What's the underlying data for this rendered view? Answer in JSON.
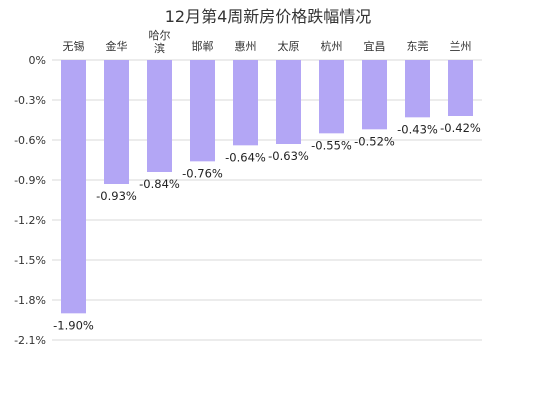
{
  "chart_data": {
    "type": "bar",
    "title": "12月第4周新房价格跌幅情况",
    "categories": [
      "无锡",
      "金华",
      "哈尔滨",
      "邯郸",
      "惠州",
      "太原",
      "杭州",
      "宜昌",
      "东莞",
      "兰州"
    ],
    "values": [
      -1.9,
      -0.93,
      -0.84,
      -0.76,
      -0.64,
      -0.63,
      -0.55,
      -0.52,
      -0.43,
      -0.42
    ],
    "value_labels": [
      "-1.90%",
      "-0.93%",
      "-0.84%",
      "-0.76%",
      "-0.64%",
      "-0.63%",
      "-0.55%",
      "-0.52%",
      "-0.43%",
      "-0.42%"
    ],
    "yticks": [
      0,
      -0.3,
      -0.6,
      -0.9,
      -1.2,
      -1.5,
      -1.8,
      -2.1
    ],
    "ytick_labels": [
      "0%",
      "-0.3%",
      "-0.6%",
      "-0.9%",
      "-1.2%",
      "-1.5%",
      "-1.8%",
      "-2.1%"
    ],
    "ylim": [
      -2.1,
      0
    ],
    "xlabel": "",
    "ylabel": "",
    "grid": true,
    "legend": "none",
    "bar_color": "#b3a6f5"
  }
}
